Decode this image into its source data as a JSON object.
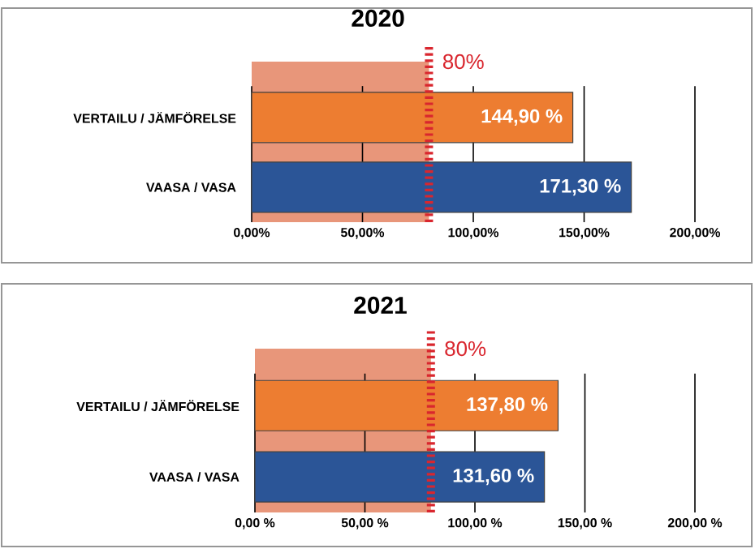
{
  "chart_data": [
    {
      "type": "bar",
      "orientation": "horizontal",
      "title": "2020",
      "categories": [
        "VERTAILU / JÄMFÖRELSE",
        "VAASA / VASA"
      ],
      "values": [
        144.9,
        171.3
      ],
      "colors": [
        "#ed7d31",
        "#2b5597"
      ],
      "value_labels": [
        "144,90 %",
        "171,30 %"
      ],
      "xlim": [
        0,
        200
      ],
      "xticks": [
        {
          "value": 0,
          "label": "0,00%"
        },
        {
          "value": 50,
          "label": "50,00%"
        },
        {
          "value": 100,
          "label": "100,00%"
        },
        {
          "value": 150,
          "label": "150,00%"
        },
        {
          "value": 200,
          "label": "200,00%"
        }
      ],
      "grid": "x",
      "bands": [
        {
          "axis": "x",
          "from": 0,
          "to": 80,
          "color": "#e8967a"
        }
      ],
      "ref_lines": [
        {
          "axis": "x",
          "value": 80,
          "label": "80%",
          "color": "#d9262e",
          "line_style": "dashed"
        }
      ]
    },
    {
      "type": "bar",
      "orientation": "horizontal",
      "title": "2021",
      "categories": [
        "VERTAILU / JÄMFÖRELSE",
        "VAASA / VASA"
      ],
      "values": [
        137.8,
        131.6
      ],
      "colors": [
        "#ed7d31",
        "#2b5597"
      ],
      "value_labels": [
        "137,80 %",
        "131,60 %"
      ],
      "xlim": [
        0,
        200
      ],
      "xticks": [
        {
          "value": 0,
          "label": "0,00 %"
        },
        {
          "value": 50,
          "label": "50,00 %"
        },
        {
          "value": 100,
          "label": "100,00 %"
        },
        {
          "value": 150,
          "label": "150,00 %"
        },
        {
          "value": 200,
          "label": "200,00 %"
        }
      ],
      "grid": "x",
      "bands": [
        {
          "axis": "x",
          "from": 0,
          "to": 80,
          "color": "#e8967a"
        }
      ],
      "ref_lines": [
        {
          "axis": "x",
          "value": 80,
          "label": "80%",
          "color": "#d9262e",
          "line_style": "dashed"
        }
      ]
    }
  ]
}
